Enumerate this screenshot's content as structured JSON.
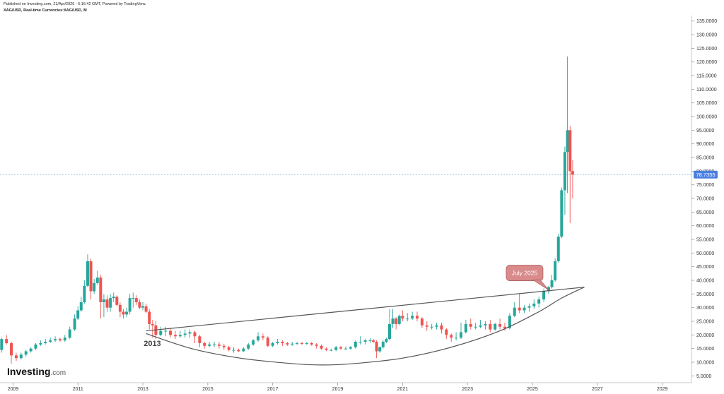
{
  "header": {
    "published": "Published on Investing.com, 21/Apr/2026 - 6:16:42 GMT, Powered by TradingView.",
    "symbol": "XAG/USD, Real-time Currencies:XAG/USD, M"
  },
  "brand": {
    "name": "Investing",
    "suffix": ".com"
  },
  "colors": {
    "up": "#26a69a",
    "down": "#ef5350",
    "last_line": "#9ec5e8",
    "last_badge": "#4a7fe0",
    "callout": "#d98a8a"
  },
  "chart_data": {
    "type": "candlestick",
    "title": "",
    "xlabel": "",
    "ylabel": "",
    "ylim": [
      2.5,
      137
    ],
    "xlim": [
      2008.6,
      2029.9
    ],
    "grid": false,
    "x_ticks": [
      "2009",
      "2011",
      "2013",
      "2015",
      "2017",
      "2019",
      "2021",
      "2023",
      "2025",
      "2027",
      "2029"
    ],
    "y_ticks": [
      "5.0000",
      "10.0000",
      "15.0000",
      "20.0000",
      "25.0000",
      "30.0000",
      "35.0000",
      "40.0000",
      "45.0000",
      "50.0000",
      "55.0000",
      "60.0000",
      "65.0000",
      "70.0000",
      "75.0000",
      "80.0000",
      "85.0000",
      "90.0000",
      "95.0000",
      "100.0000",
      "105.0000",
      "110.0000",
      "115.0000",
      "120.0000",
      "125.0000",
      "130.0000",
      "135.0000"
    ],
    "last_price": "78.7355",
    "last_price_value": 78.7355,
    "callout": "July 2025",
    "callout_point": [
      2025.5,
      36.5
    ],
    "annotation": "2013",
    "annotation_point": [
      2013.2,
      17
    ],
    "trendline": {
      "x": [
        2013.1,
        2026.6
      ],
      "y": [
        21.5,
        37.5
      ]
    },
    "cup_curve": {
      "x": [
        2013.1,
        2014.5,
        2016.0,
        2017.5,
        2018.5,
        2019.5,
        2021.0,
        2022.5,
        2024.0,
        2025.2,
        2025.9,
        2026.6
      ],
      "y": [
        20.5,
        15.0,
        11.5,
        9.6,
        9.0,
        9.5,
        11.5,
        15.5,
        21.5,
        28.5,
        33.5,
        37.5
      ]
    },
    "series": [
      {
        "name": "XAG/USD",
        "x": [
          2008.65,
          2008.8,
          2008.95,
          2009.1,
          2009.25,
          2009.4,
          2009.55,
          2009.7,
          2009.85,
          2010.0,
          2010.15,
          2010.3,
          2010.45,
          2010.6,
          2010.75,
          2010.9,
          2011.0,
          2011.1,
          2011.2,
          2011.3,
          2011.4,
          2011.5,
          2011.6,
          2011.7,
          2011.8,
          2011.9,
          2012.0,
          2012.1,
          2012.2,
          2012.3,
          2012.4,
          2012.5,
          2012.6,
          2012.7,
          2012.8,
          2012.9,
          2013.0,
          2013.1,
          2013.2,
          2013.3,
          2013.4,
          2013.55,
          2013.7,
          2013.85,
          2014.0,
          2014.15,
          2014.3,
          2014.45,
          2014.6,
          2014.75,
          2014.9,
          2015.05,
          2015.2,
          2015.35,
          2015.5,
          2015.65,
          2015.8,
          2015.95,
          2016.1,
          2016.25,
          2016.4,
          2016.55,
          2016.7,
          2016.85,
          2017.0,
          2017.15,
          2017.3,
          2017.45,
          2017.6,
          2017.75,
          2017.9,
          2018.05,
          2018.2,
          2018.35,
          2018.5,
          2018.65,
          2018.8,
          2018.95,
          2019.1,
          2019.25,
          2019.4,
          2019.55,
          2019.7,
          2019.85,
          2020.0,
          2020.1,
          2020.2,
          2020.3,
          2020.4,
          2020.5,
          2020.6,
          2020.7,
          2020.8,
          2020.9,
          2021.0,
          2021.15,
          2021.3,
          2021.45,
          2021.6,
          2021.75,
          2021.9,
          2022.05,
          2022.2,
          2022.35,
          2022.5,
          2022.65,
          2022.8,
          2022.95,
          2023.1,
          2023.25,
          2023.4,
          2023.55,
          2023.7,
          2023.85,
          2024.0,
          2024.15,
          2024.3,
          2024.45,
          2024.6,
          2024.75,
          2024.9,
          2025.05,
          2025.2,
          2025.35,
          2025.5,
          2025.6,
          2025.7,
          2025.8,
          2025.9,
          2026.0,
          2026.08,
          2026.16,
          2026.24
        ],
        "open": [
          14.5,
          18.5,
          17.0,
          12.5,
          11.5,
          12.8,
          14.0,
          15.0,
          16.5,
          17.0,
          17.5,
          18.0,
          18.5,
          18.0,
          19.0,
          22.0,
          26.0,
          29.0,
          32.0,
          38.0,
          47.0,
          36.0,
          39.0,
          41.0,
          32.0,
          33.0,
          30.0,
          33.5,
          34.0,
          31.0,
          28.5,
          27.5,
          28.5,
          33.5,
          33.5,
          32.0,
          30.0,
          30.5,
          28.5,
          24.0,
          23.5,
          20.0,
          21.5,
          21.5,
          20.0,
          19.5,
          20.0,
          20.5,
          21.0,
          19.5,
          17.0,
          16.0,
          16.5,
          16.5,
          16.0,
          15.5,
          14.5,
          14.5,
          14.0,
          15.0,
          16.5,
          18.0,
          19.5,
          19.0,
          16.0,
          17.0,
          17.5,
          17.0,
          16.5,
          16.8,
          17.0,
          16.8,
          17.0,
          16.5,
          16.0,
          15.0,
          14.5,
          14.5,
          15.5,
          15.0,
          15.0,
          15.5,
          17.5,
          17.5,
          18.0,
          18.0,
          17.5,
          14.0,
          15.5,
          17.5,
          18.5,
          24.0,
          26.0,
          24.0,
          27.0,
          26.0,
          26.0,
          27.0,
          26.0,
          23.5,
          23.0,
          23.0,
          23.5,
          22.0,
          20.0,
          19.0,
          19.0,
          21.0,
          24.0,
          23.0,
          23.0,
          23.5,
          24.0,
          22.0,
          24.0,
          23.0,
          22.5,
          27.0,
          30.0,
          29.0,
          30.0,
          30.5,
          31.5,
          33.0,
          36.0,
          37.5,
          40.0,
          47.0,
          56.0,
          73.0,
          87.0,
          95.0,
          80.0
        ],
        "close": [
          18.5,
          17.0,
          12.5,
          11.5,
          12.8,
          14.0,
          15.0,
          16.5,
          17.0,
          17.5,
          18.0,
          18.5,
          18.0,
          19.0,
          22.0,
          26.0,
          29.0,
          32.0,
          38.0,
          47.0,
          36.0,
          39.0,
          41.0,
          32.0,
          33.0,
          30.0,
          33.5,
          34.0,
          31.0,
          28.5,
          27.5,
          28.5,
          33.5,
          33.5,
          32.0,
          30.0,
          30.5,
          28.5,
          24.0,
          23.5,
          20.0,
          21.5,
          21.5,
          20.0,
          19.5,
          20.0,
          20.5,
          21.0,
          19.5,
          17.0,
          16.0,
          16.5,
          16.5,
          16.0,
          15.5,
          14.5,
          14.5,
          14.0,
          15.0,
          16.5,
          18.0,
          19.5,
          19.0,
          16.0,
          17.0,
          17.5,
          17.0,
          16.5,
          16.8,
          17.0,
          16.8,
          17.0,
          16.5,
          16.0,
          15.0,
          14.5,
          14.5,
          15.5,
          15.0,
          15.0,
          15.5,
          17.5,
          17.5,
          18.0,
          18.0,
          17.5,
          14.0,
          15.5,
          17.5,
          18.5,
          24.0,
          26.0,
          24.0,
          27.0,
          26.0,
          26.0,
          27.0,
          26.0,
          23.5,
          23.0,
          23.0,
          23.5,
          22.0,
          20.0,
          19.0,
          19.0,
          21.0,
          24.0,
          23.0,
          23.0,
          23.5,
          24.0,
          22.0,
          24.0,
          23.0,
          22.5,
          27.0,
          30.0,
          29.0,
          30.0,
          30.5,
          31.5,
          33.0,
          36.0,
          37.5,
          40.0,
          47.0,
          56.0,
          73.0,
          87.0,
          95.0,
          80.0,
          78.7355
        ],
        "high": [
          19.0,
          20.0,
          17.5,
          13.5,
          13.5,
          14.5,
          15.5,
          17.0,
          18.0,
          18.5,
          19.0,
          19.5,
          19.0,
          20.0,
          23.0,
          27.5,
          30.5,
          34.0,
          40.0,
          49.5,
          48.0,
          40.5,
          43.5,
          42.0,
          35.0,
          34.5,
          35.0,
          35.5,
          34.5,
          32.0,
          29.5,
          30.0,
          35.0,
          35.5,
          34.5,
          33.0,
          32.0,
          31.5,
          29.5,
          25.5,
          25.0,
          23.0,
          23.0,
          22.5,
          21.5,
          21.5,
          22.0,
          22.0,
          21.5,
          20.0,
          17.5,
          17.5,
          17.5,
          17.5,
          16.8,
          16.0,
          15.5,
          15.0,
          15.5,
          17.0,
          18.5,
          21.0,
          20.5,
          19.5,
          17.5,
          18.5,
          18.0,
          17.5,
          17.5,
          17.5,
          17.5,
          17.5,
          17.5,
          17.0,
          16.5,
          15.5,
          15.0,
          16.0,
          16.0,
          15.8,
          16.0,
          18.0,
          19.5,
          18.5,
          18.8,
          18.5,
          18.0,
          15.8,
          18.0,
          19.0,
          29.5,
          29.5,
          26.5,
          27.5,
          29.0,
          28.0,
          28.5,
          28.5,
          26.5,
          25.0,
          24.0,
          24.5,
          24.5,
          22.5,
          20.5,
          21.0,
          24.5,
          25.5,
          26.0,
          24.5,
          25.5,
          25.0,
          25.5,
          24.5,
          26.0,
          24.5,
          28.0,
          32.0,
          35.0,
          31.0,
          31.5,
          33.0,
          34.0,
          37.0,
          38.0,
          42.0,
          48.0,
          57.0,
          74.0,
          89.0,
          122.0,
          96.5,
          84.0
        ],
        "low": [
          13.5,
          16.5,
          9.5,
          10.5,
          11.0,
          12.0,
          13.5,
          14.5,
          16.0,
          16.5,
          17.0,
          17.5,
          17.5,
          17.5,
          18.5,
          21.5,
          25.5,
          28.5,
          31.5,
          37.5,
          33.0,
          35.0,
          38.5,
          26.0,
          26.5,
          28.5,
          28.5,
          32.0,
          30.5,
          26.5,
          26.0,
          26.5,
          27.5,
          30.0,
          31.0,
          29.5,
          29.0,
          28.0,
          22.0,
          19.0,
          18.5,
          19.5,
          19.5,
          19.0,
          18.5,
          19.0,
          19.0,
          19.0,
          17.0,
          15.5,
          15.0,
          15.5,
          15.5,
          15.0,
          14.5,
          14.0,
          13.5,
          13.8,
          13.8,
          14.5,
          16.0,
          17.5,
          18.0,
          15.5,
          15.5,
          16.5,
          16.0,
          16.0,
          16.0,
          16.3,
          16.3,
          16.3,
          16.0,
          15.0,
          14.5,
          14.0,
          14.0,
          14.0,
          14.5,
          14.5,
          14.5,
          15.0,
          16.5,
          16.5,
          17.0,
          17.0,
          11.5,
          13.5,
          15.0,
          17.0,
          18.0,
          22.5,
          22.0,
          23.5,
          25.0,
          25.0,
          25.5,
          25.0,
          22.5,
          21.5,
          22.0,
          22.0,
          20.5,
          18.5,
          17.5,
          18.0,
          18.5,
          20.5,
          22.0,
          22.0,
          22.5,
          22.0,
          21.0,
          21.5,
          22.0,
          21.5,
          22.0,
          26.5,
          28.0,
          28.0,
          28.5,
          29.5,
          30.0,
          32.0,
          35.0,
          37.0,
          39.5,
          46.5,
          55.5,
          64.0,
          72.0,
          61.0,
          70.0
        ]
      }
    ]
  }
}
